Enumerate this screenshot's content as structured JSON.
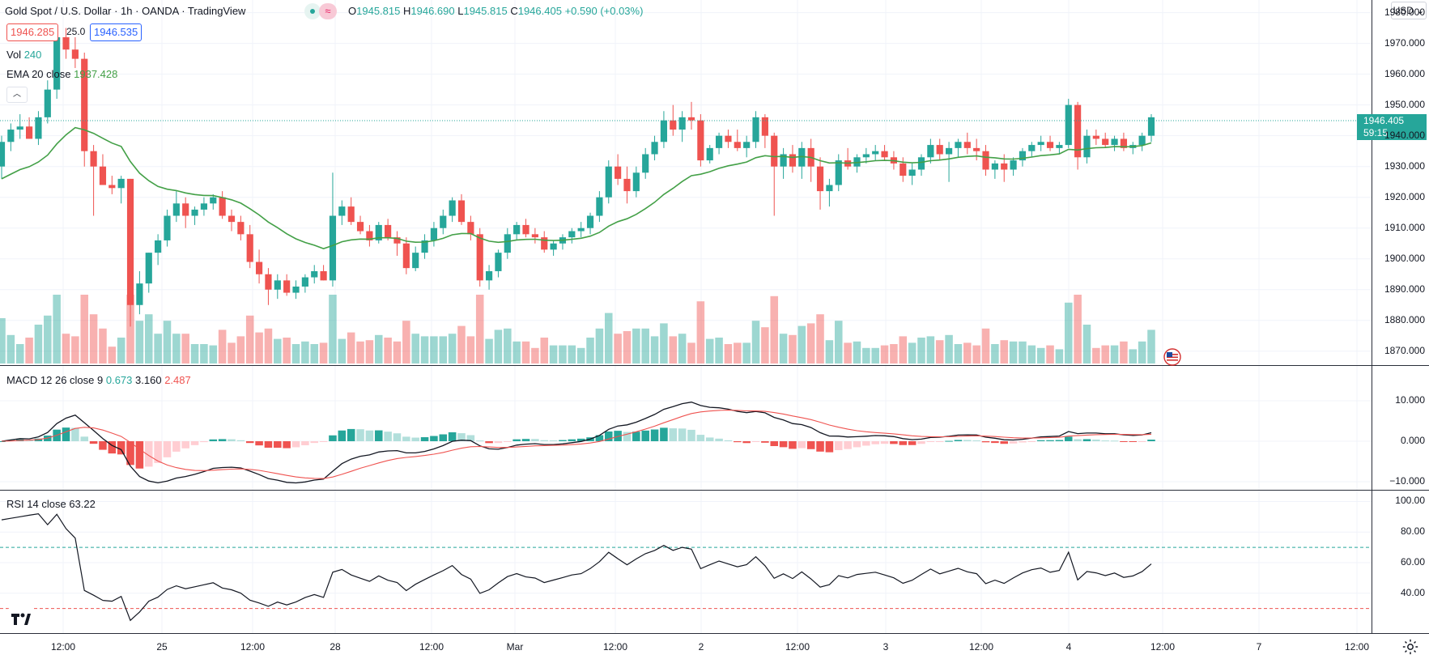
{
  "header": {
    "title": "Gold Spot / U.S. Dollar · 1h · OANDA · TradingView",
    "ohlc": {
      "o_label": "O",
      "o": "1945.815",
      "h_label": "H",
      "h": "1946.690",
      "l_label": "L",
      "l": "1945.815",
      "c_label": "C",
      "c": "1946.405",
      "chg": "+0.590 (+0.03%)"
    },
    "bid": "1946.285",
    "spread": "25.0",
    "ask": "1946.535"
  },
  "legend": {
    "vol_label": "Vol",
    "vol_value": "240",
    "ema_label": "EMA 20 close",
    "ema_value": "1937.428",
    "macd_label": "MACD 12 26 close 9",
    "macd_v1": "0.673",
    "macd_v2": "3.160",
    "macd_v3": "2.487",
    "rsi_label": "RSI 14 close",
    "rsi_value": "63.22"
  },
  "currency_button": "USD",
  "last_price": {
    "price": "1946.405",
    "countdown": "59:15"
  },
  "colors": {
    "up": "#26a69a",
    "down": "#ef5350",
    "ema": "#43a047",
    "grid": "#f0f3fa",
    "macd_signal": "#ef5350"
  },
  "axes": {
    "price_ticks": [
      "1980.000",
      "1970.000",
      "1960.000",
      "1950.000",
      "1940.000",
      "1930.000",
      "1920.000",
      "1910.000",
      "1900.000",
      "1890.000",
      "1880.000",
      "1870.000"
    ],
    "macd_ticks": [
      "10.000",
      "0.000",
      "−10.000"
    ],
    "rsi_ticks": [
      "100.00",
      "80.00",
      "60.00",
      "40.00"
    ],
    "time_ticks": [
      "12:00",
      "25",
      "12:00",
      "28",
      "12:00",
      "Mar",
      "12:00",
      "2",
      "12:00",
      "3",
      "12:00",
      "4",
      "12:00",
      "7",
      "12:00"
    ]
  },
  "icons": {
    "settings": "gear-icon",
    "logo": "tradingview-logo-icon",
    "flag": "us-flag-icon",
    "collapse": "chevron-up-icon"
  },
  "chart_data": {
    "type": "candlestick",
    "ylim": [
      1866,
      1982
    ],
    "rsi_levels": [
      70,
      30
    ],
    "candles": [
      [
        1930,
        1940,
        1926,
        1938
      ],
      [
        1938,
        1944,
        1935,
        1942
      ],
      [
        1942,
        1947,
        1939,
        1943
      ],
      [
        1943,
        1946,
        1939,
        1939
      ],
      [
        1939,
        1948,
        1937,
        1946
      ],
      [
        1946,
        1958,
        1944,
        1955
      ],
      [
        1955,
        1976,
        1952,
        1972
      ],
      [
        1972,
        1975,
        1965,
        1968
      ],
      [
        1968,
        1972,
        1962,
        1965
      ],
      [
        1965,
        1967,
        1930,
        1935
      ],
      [
        1935,
        1937,
        1914,
        1930
      ],
      [
        1930,
        1934,
        1924,
        1924
      ],
      [
        1924,
        1927,
        1921,
        1923
      ],
      [
        1923,
        1927,
        1918,
        1926
      ],
      [
        1926,
        1926,
        1878,
        1885
      ],
      [
        1885,
        1896,
        1882,
        1892
      ],
      [
        1892,
        1902,
        1889,
        1902
      ],
      [
        1902,
        1908,
        1898,
        1906
      ],
      [
        1906,
        1916,
        1904,
        1914
      ],
      [
        1914,
        1922,
        1912,
        1918
      ],
      [
        1918,
        1920,
        1910,
        1914
      ],
      [
        1914,
        1917,
        1911,
        1916
      ],
      [
        1916,
        1920,
        1914,
        1918
      ],
      [
        1918,
        1921,
        1916,
        1920
      ],
      [
        1920,
        1922,
        1913,
        1914
      ],
      [
        1914,
        1916,
        1909,
        1912
      ],
      [
        1912,
        1914,
        1906,
        1908
      ],
      [
        1908,
        1911,
        1897,
        1899
      ],
      [
        1899,
        1903,
        1892,
        1895
      ],
      [
        1895,
        1897,
        1885,
        1890
      ],
      [
        1890,
        1895,
        1887,
        1893
      ],
      [
        1893,
        1895,
        1888,
        1889
      ],
      [
        1889,
        1893,
        1887,
        1891
      ],
      [
        1891,
        1895,
        1889,
        1894
      ],
      [
        1894,
        1898,
        1892,
        1896
      ],
      [
        1896,
        1898,
        1893,
        1893
      ],
      [
        1893,
        1928,
        1891,
        1914
      ],
      [
        1914,
        1919,
        1911,
        1917
      ],
      [
        1917,
        1920,
        1911,
        1912
      ],
      [
        1912,
        1914,
        1908,
        1909
      ],
      [
        1909,
        1911,
        1904,
        1906
      ],
      [
        1906,
        1912,
        1905,
        1911
      ],
      [
        1911,
        1913,
        1906,
        1907
      ],
      [
        1907,
        1909,
        1901,
        1905
      ],
      [
        1905,
        1907,
        1895,
        1897
      ],
      [
        1897,
        1904,
        1896,
        1902
      ],
      [
        1902,
        1908,
        1900,
        1906
      ],
      [
        1906,
        1912,
        1904,
        1910
      ],
      [
        1910,
        1916,
        1908,
        1914
      ],
      [
        1914,
        1920,
        1912,
        1919
      ],
      [
        1919,
        1921,
        1911,
        1912
      ],
      [
        1912,
        1914,
        1906,
        1908
      ],
      [
        1908,
        1910,
        1891,
        1893
      ],
      [
        1893,
        1898,
        1890,
        1896
      ],
      [
        1896,
        1903,
        1894,
        1902
      ],
      [
        1902,
        1910,
        1900,
        1908
      ],
      [
        1908,
        1912,
        1906,
        1911
      ],
      [
        1911,
        1913,
        1907,
        1908
      ],
      [
        1908,
        1910,
        1905,
        1907
      ],
      [
        1907,
        1909,
        1902,
        1903
      ],
      [
        1903,
        1906,
        1901,
        1905
      ],
      [
        1905,
        1908,
        1903,
        1907
      ],
      [
        1907,
        1910,
        1905,
        1909
      ],
      [
        1909,
        1912,
        1907,
        1910
      ],
      [
        1910,
        1915,
        1908,
        1914
      ],
      [
        1914,
        1922,
        1912,
        1920
      ],
      [
        1920,
        1932,
        1918,
        1930
      ],
      [
        1930,
        1934,
        1924,
        1926
      ],
      [
        1926,
        1930,
        1918,
        1922
      ],
      [
        1922,
        1930,
        1920,
        1928
      ],
      [
        1928,
        1936,
        1926,
        1934
      ],
      [
        1934,
        1940,
        1932,
        1938
      ],
      [
        1938,
        1948,
        1936,
        1945
      ],
      [
        1945,
        1950,
        1940,
        1942
      ],
      [
        1942,
        1948,
        1938,
        1946
      ],
      [
        1946,
        1951,
        1942,
        1945
      ],
      [
        1945,
        1947,
        1930,
        1932
      ],
      [
        1932,
        1937,
        1931,
        1936
      ],
      [
        1936,
        1941,
        1934,
        1940
      ],
      [
        1940,
        1942,
        1936,
        1938
      ],
      [
        1938,
        1942,
        1935,
        1936
      ],
      [
        1936,
        1940,
        1933,
        1938
      ],
      [
        1938,
        1948,
        1936,
        1946
      ],
      [
        1946,
        1947,
        1936,
        1940
      ],
      [
        1940,
        1941,
        1914,
        1930
      ],
      [
        1930,
        1936,
        1926,
        1934
      ],
      [
        1934,
        1937,
        1928,
        1930
      ],
      [
        1930,
        1938,
        1926,
        1936
      ],
      [
        1936,
        1939,
        1925,
        1930
      ],
      [
        1930,
        1933,
        1916,
        1922
      ],
      [
        1922,
        1926,
        1917,
        1924
      ],
      [
        1924,
        1934,
        1922,
        1932
      ],
      [
        1932,
        1936,
        1929,
        1930
      ],
      [
        1930,
        1934,
        1928,
        1933
      ],
      [
        1933,
        1936,
        1931,
        1934
      ],
      [
        1934,
        1937,
        1932,
        1935
      ],
      [
        1935,
        1937,
        1932,
        1933
      ],
      [
        1933,
        1935,
        1929,
        1931
      ],
      [
        1931,
        1933,
        1925,
        1927
      ],
      [
        1927,
        1931,
        1924,
        1929
      ],
      [
        1929,
        1934,
        1927,
        1933
      ],
      [
        1933,
        1939,
        1931,
        1937
      ],
      [
        1937,
        1939,
        1932,
        1934
      ],
      [
        1934,
        1938,
        1925,
        1936
      ],
      [
        1936,
        1939,
        1933,
        1938
      ],
      [
        1938,
        1941,
        1934,
        1936
      ],
      [
        1936,
        1939,
        1932,
        1935
      ],
      [
        1935,
        1937,
        1927,
        1929
      ],
      [
        1929,
        1932,
        1926,
        1931
      ],
      [
        1931,
        1934,
        1925,
        1929
      ],
      [
        1929,
        1933,
        1927,
        1932
      ],
      [
        1932,
        1936,
        1930,
        1935
      ],
      [
        1935,
        1938,
        1933,
        1937
      ],
      [
        1937,
        1940,
        1935,
        1938
      ],
      [
        1938,
        1940,
        1935,
        1936
      ],
      [
        1936,
        1938,
        1934,
        1937
      ],
      [
        1937,
        1952,
        1936,
        1950
      ],
      [
        1950,
        1951,
        1929,
        1933
      ],
      [
        1933,
        1942,
        1931,
        1940
      ],
      [
        1940,
        1942,
        1937,
        1939
      ],
      [
        1939,
        1941,
        1936,
        1937
      ],
      [
        1937,
        1940,
        1935,
        1939
      ],
      [
        1939,
        1941,
        1935,
        1936
      ],
      [
        1936,
        1938,
        1934,
        1937
      ],
      [
        1937,
        1941,
        1935,
        1940
      ],
      [
        1940,
        1947,
        1938,
        1946
      ]
    ],
    "volume_scale": [
      0,
      100
    ]
  }
}
